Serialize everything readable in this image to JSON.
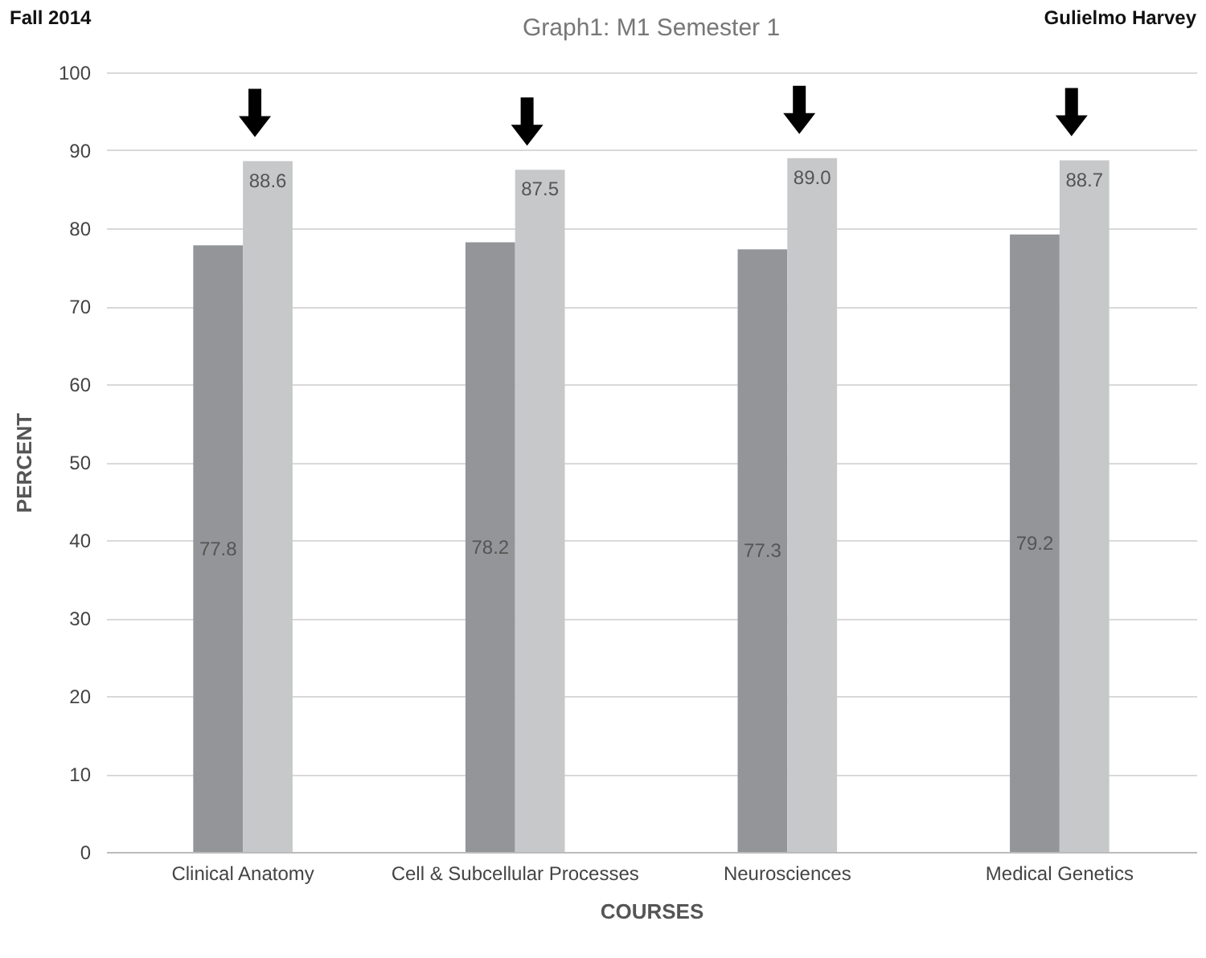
{
  "chart_data": {
    "type": "bar",
    "title": "Graph1:  M1 Semester 1",
    "xlabel": "COURSES",
    "ylabel": "PERCENT",
    "annotations": [
      "Fall 2014",
      "Gulielmo Harvey"
    ],
    "categories": [
      "Clinical Anatomy",
      "Cell & Subcellular Processes",
      "Neurosciences",
      "Medical Genetics"
    ],
    "series": [
      {
        "color": "#939598",
        "values": [
          77.8,
          78.2,
          77.3,
          79.2
        ],
        "value_labels": [
          "77.8",
          "78.2",
          "77.3",
          "79.2"
        ]
      },
      {
        "color": "#c7c8ca",
        "values": [
          88.6,
          87.5,
          89.0,
          88.7
        ],
        "value_labels": [
          "88.6",
          "87.5",
          "89.0",
          "88.7"
        ]
      }
    ],
    "ylim": [
      0,
      100
    ],
    "yticks": [
      0,
      10,
      20,
      30,
      40,
      50,
      60,
      70,
      80,
      90,
      100
    ],
    "grid": "y",
    "legend": false
  }
}
